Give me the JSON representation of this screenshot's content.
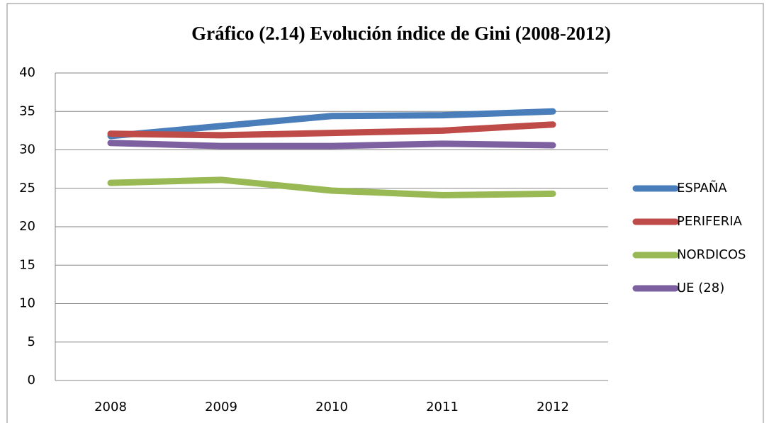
{
  "chart_data": {
    "type": "line",
    "title": "Gráfico (2.14) Evolución índice de Gini (2008-2012)",
    "categories": [
      "2008",
      "2009",
      "2010",
      "2011",
      "2012"
    ],
    "series": [
      {
        "name": "ESPAÑA",
        "color": "#4a7ebb",
        "values": [
          31.8,
          33.1,
          34.4,
          34.5,
          35.0
        ]
      },
      {
        "name": "PERIFERIA",
        "color": "#be4b48",
        "values": [
          32.1,
          31.9,
          32.2,
          32.5,
          33.3
        ]
      },
      {
        "name": "NORDICOS",
        "color": "#98b954",
        "values": [
          25.7,
          26.1,
          24.7,
          24.1,
          24.3
        ]
      },
      {
        "name": "UE (28)",
        "color": "#7d60a0",
        "values": [
          30.9,
          30.5,
          30.5,
          30.8,
          30.6
        ]
      }
    ],
    "ylim": [
      0,
      40
    ],
    "yticks": [
      0,
      5,
      10,
      15,
      20,
      25,
      30,
      35,
      40
    ],
    "grid": true,
    "legend": "right"
  }
}
